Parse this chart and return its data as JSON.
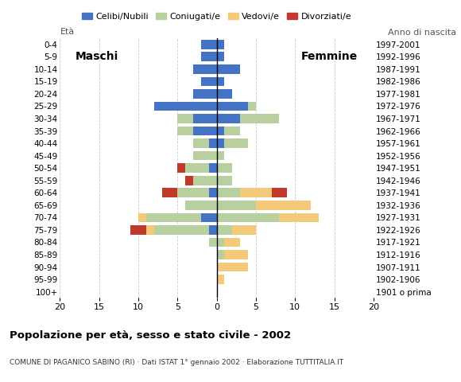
{
  "age_groups": [
    "100+",
    "95-99",
    "90-94",
    "85-89",
    "80-84",
    "75-79",
    "70-74",
    "65-69",
    "60-64",
    "55-59",
    "50-54",
    "45-49",
    "40-44",
    "35-39",
    "30-34",
    "25-29",
    "20-24",
    "15-19",
    "10-14",
    "5-9",
    "0-4"
  ],
  "birth_years": [
    "1901 o prima",
    "1902-1906",
    "1907-1911",
    "1912-1916",
    "1917-1921",
    "1922-1926",
    "1927-1931",
    "1932-1936",
    "1937-1941",
    "1942-1946",
    "1947-1951",
    "1952-1956",
    "1957-1961",
    "1962-1966",
    "1967-1971",
    "1972-1976",
    "1977-1981",
    "1982-1986",
    "1987-1991",
    "1992-1996",
    "1997-2001"
  ],
  "males": {
    "celibe": [
      0,
      0,
      0,
      0,
      0,
      1,
      2,
      0,
      1,
      0,
      1,
      0,
      1,
      3,
      3,
      8,
      3,
      2,
      3,
      2,
      2
    ],
    "coniugato": [
      0,
      0,
      0,
      0,
      1,
      7,
      7,
      4,
      4,
      3,
      3,
      3,
      2,
      2,
      2,
      0,
      0,
      0,
      0,
      0,
      0
    ],
    "vedovo": [
      0,
      0,
      0,
      0,
      0,
      1,
      1,
      0,
      0,
      0,
      0,
      0,
      0,
      0,
      0,
      0,
      0,
      0,
      0,
      0,
      0
    ],
    "divorziato": [
      0,
      0,
      0,
      0,
      0,
      2,
      0,
      0,
      2,
      1,
      1,
      0,
      0,
      0,
      0,
      0,
      0,
      0,
      0,
      0,
      0
    ]
  },
  "females": {
    "celibe": [
      0,
      0,
      0,
      0,
      0,
      0,
      0,
      0,
      0,
      0,
      0,
      0,
      1,
      1,
      3,
      4,
      2,
      1,
      3,
      1,
      1
    ],
    "coniugato": [
      0,
      0,
      0,
      1,
      1,
      2,
      8,
      5,
      3,
      2,
      2,
      1,
      3,
      2,
      5,
      1,
      0,
      0,
      0,
      0,
      0
    ],
    "vedovo": [
      0,
      1,
      4,
      3,
      2,
      3,
      5,
      7,
      4,
      0,
      0,
      0,
      0,
      0,
      0,
      0,
      0,
      0,
      0,
      0,
      0
    ],
    "divorziato": [
      0,
      0,
      0,
      0,
      0,
      0,
      0,
      0,
      2,
      0,
      0,
      0,
      0,
      0,
      0,
      0,
      0,
      0,
      0,
      0,
      0
    ]
  },
  "colors": {
    "celibe": "#4472c4",
    "coniugato": "#b8cfa0",
    "vedovo": "#f5c97a",
    "divorziato": "#c0392b"
  },
  "legend_labels": [
    "Celibi/Nubili",
    "Coniugati/e",
    "Vedovi/e",
    "Divorziati/e"
  ],
  "title": "Popolazione per età, sesso e stato civile - 2002",
  "subtitle": "COMUNE DI PAGANICO SABINO (RI) · Dati ISTAT 1° gennaio 2002 · Elaborazione TUTTITALIA.IT",
  "xlim": 20,
  "xlabel_left": "Maschi",
  "xlabel_right": "Femmine",
  "ylabel_left": "Età",
  "ylabel_right": "Anno di nascita",
  "bg_color": "#ffffff",
  "grid_color": "#cccccc"
}
